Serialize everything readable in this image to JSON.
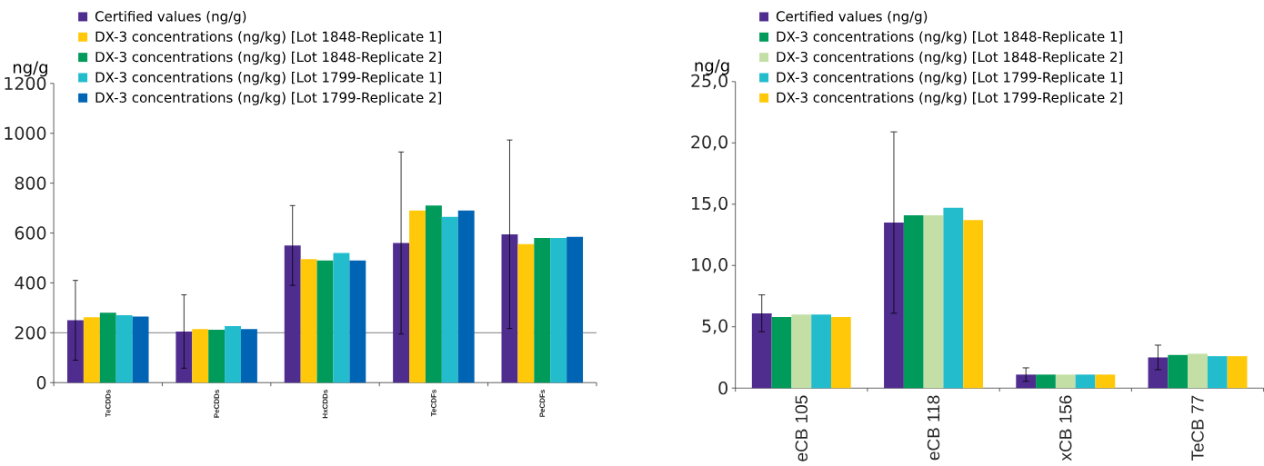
{
  "chart_data": [
    {
      "type": "bar",
      "ylabel": "ng/g",
      "categories": [
        "TeCDDs",
        "PeCDDs",
        "HxCDDs",
        "TeCDFs",
        "PeCDFs"
      ],
      "series": [
        {
          "name": "Certified values (ng/g)",
          "color": "#4f2d8f",
          "values": [
            250,
            205,
            550,
            560,
            595
          ],
          "errors": [
            160,
            147,
            160,
            365,
            378
          ]
        },
        {
          "name": "DX-3 concentrations (ng/kg) [Lot 1848-Replicate 1]",
          "color": "#ffc90a",
          "values": [
            262,
            215,
            495,
            690,
            555
          ]
        },
        {
          "name": "DX-3 concentrations (ng/kg) [Lot 1848-Replicate 2]",
          "color": "#009a5a",
          "values": [
            280,
            212,
            490,
            710,
            580
          ]
        },
        {
          "name": "DX-3 concentrations (ng/kg) [Lot 1799-Replicate 1]",
          "color": "#22bccd",
          "values": [
            270,
            227,
            520,
            665,
            580
          ]
        },
        {
          "name": "DX-3 concentrations (ng/kg) [Lot 1799-Replicate 2]",
          "color": "#0064b4",
          "values": [
            265,
            215,
            490,
            690,
            585
          ]
        }
      ],
      "ylim": [
        0,
        1200
      ],
      "yticks": [
        0,
        200,
        400,
        600,
        800,
        1000,
        1200
      ],
      "legend": "top left",
      "ref_lines": [
        {
          "axis": "y",
          "value": 200,
          "color": "#7f7f7f"
        }
      ]
    },
    {
      "type": "bar",
      "ylabel": "ng/g",
      "categories": [
        "eCB 105",
        "eCB 118",
        "xCB 156",
        "TeCB 77"
      ],
      "series": [
        {
          "name": "Certified values (ng/g)",
          "color": "#4f2d8f",
          "values": [
            6.1,
            13.5,
            1.1,
            2.5
          ],
          "errors": [
            1.5,
            7.4,
            0.55,
            1.0
          ]
        },
        {
          "name": "DX-3 concentrations (ng/kg) [Lot 1848-Replicate 1]",
          "color": "#009a5a",
          "values": [
            5.8,
            14.1,
            1.1,
            2.7
          ]
        },
        {
          "name": "DX-3 concentrations (ng/kg) [Lot 1848-Replicate 2]",
          "color": "#c3dfa5",
          "values": [
            6.0,
            14.1,
            1.1,
            2.8
          ]
        },
        {
          "name": "DX-3 concentrations (ng/kg) [Lot 1799-Replicate 1]",
          "color": "#22bccd",
          "values": [
            6.0,
            14.7,
            1.1,
            2.6
          ]
        },
        {
          "name": "DX-3 concentrations (ng/kg) [Lot 1799-Replicate 2]",
          "color": "#ffc90a",
          "values": [
            5.8,
            13.7,
            1.1,
            2.6
          ]
        }
      ],
      "ylim": [
        0,
        25
      ],
      "yticks": [
        0,
        {
          "value": 5,
          "label": "5,0"
        },
        {
          "value": 10,
          "label": "10,0"
        },
        {
          "value": 15,
          "label": "15,0"
        },
        {
          "value": 20,
          "label": "20,0"
        },
        {
          "value": 25,
          "label": "25,0"
        }
      ],
      "legend": "top left"
    }
  ]
}
